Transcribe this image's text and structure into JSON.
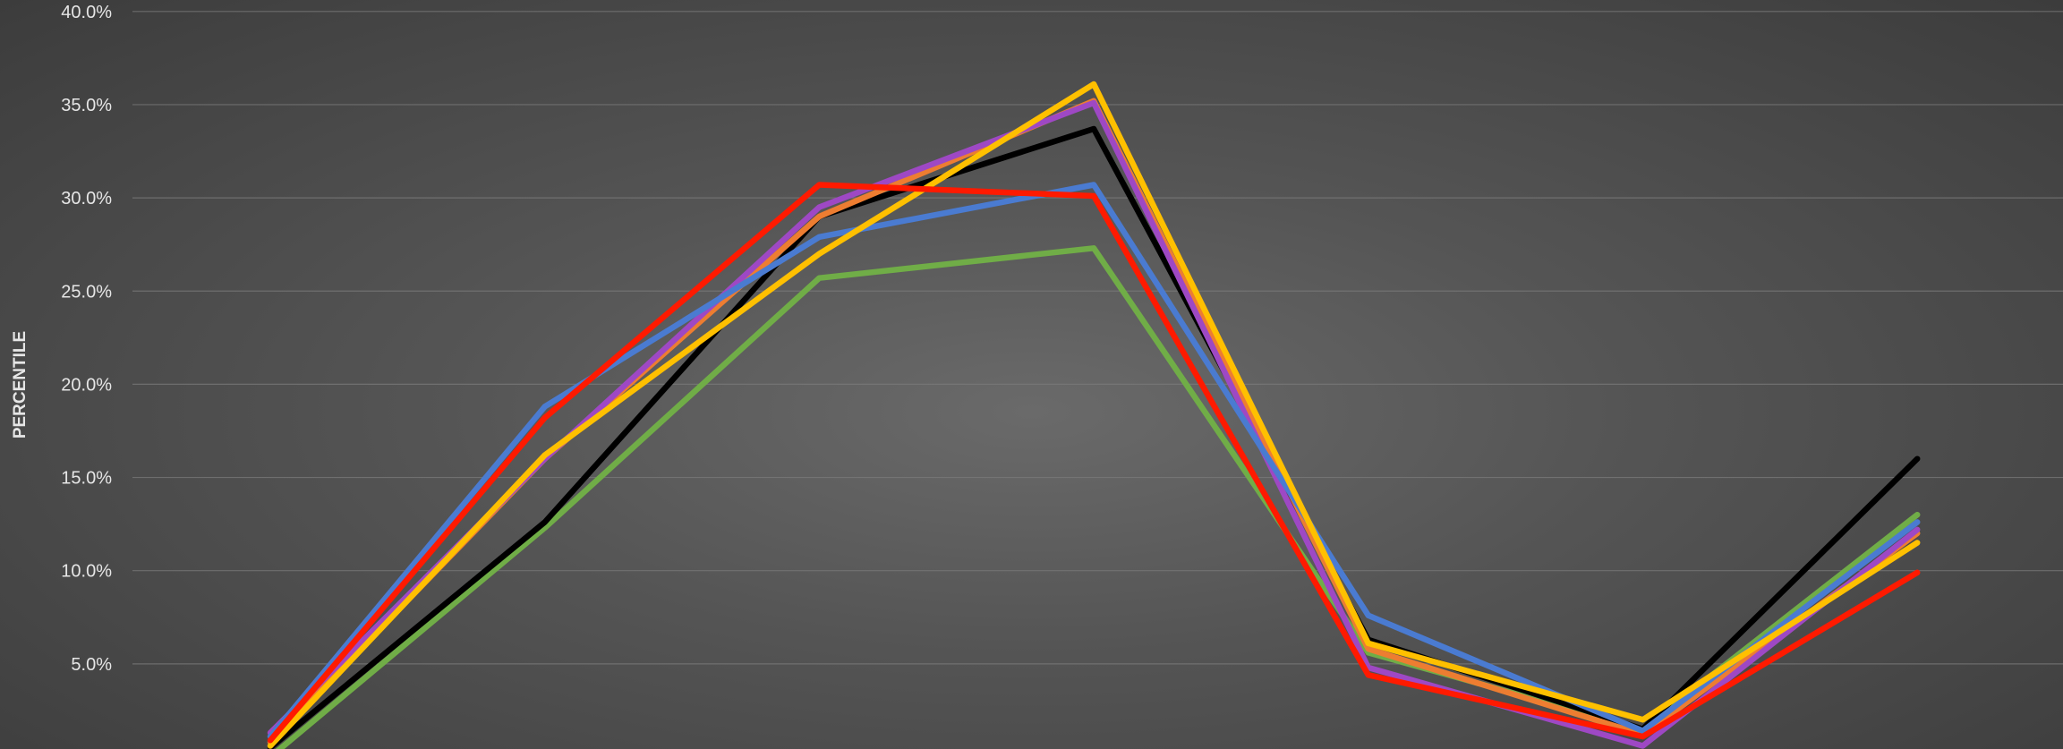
{
  "chart_data": {
    "type": "line",
    "title": "",
    "xlabel": "",
    "ylabel": "PERCENTILE",
    "ylim": [
      0,
      40
    ],
    "yticks": [
      {
        "value": 5,
        "label": "5.0%"
      },
      {
        "value": 10,
        "label": "10.0%"
      },
      {
        "value": 15,
        "label": "15.0%"
      },
      {
        "value": 20,
        "label": "20.0%"
      },
      {
        "value": 25,
        "label": "25.0%"
      },
      {
        "value": 30,
        "label": "30.0%"
      },
      {
        "value": 35,
        "label": "35.0%"
      },
      {
        "value": 40,
        "label": "40.0%"
      }
    ],
    "grid": true,
    "legend": "none",
    "x": [
      1,
      2,
      3,
      4,
      5,
      6,
      7
    ],
    "series": [
      {
        "color": "#70ad47",
        "values": [
          0.0,
          12.3,
          25.7,
          27.3,
          5.6,
          1.5,
          13.0
        ]
      },
      {
        "color": "#000000",
        "values": [
          0.5,
          12.6,
          29.0,
          33.7,
          6.3,
          1.5,
          16.0
        ]
      },
      {
        "color": "#ed7d31",
        "values": [
          0.8,
          16.0,
          29.0,
          35.2,
          5.8,
          1.2,
          12.0
        ]
      },
      {
        "color": "#9e48c4",
        "values": [
          1.3,
          16.0,
          29.5,
          35.1,
          4.8,
          0.6,
          12.2
        ]
      },
      {
        "color": "#4a7bd1",
        "values": [
          1.1,
          18.8,
          27.9,
          30.7,
          7.6,
          1.4,
          12.6
        ]
      },
      {
        "color": "#ffc000",
        "values": [
          0.6,
          16.2,
          27.0,
          36.1,
          6.1,
          2.0,
          11.5
        ]
      },
      {
        "color": "#ff1a00",
        "values": [
          0.9,
          18.2,
          30.7,
          30.1,
          4.4,
          1.1,
          9.9
        ]
      }
    ]
  }
}
